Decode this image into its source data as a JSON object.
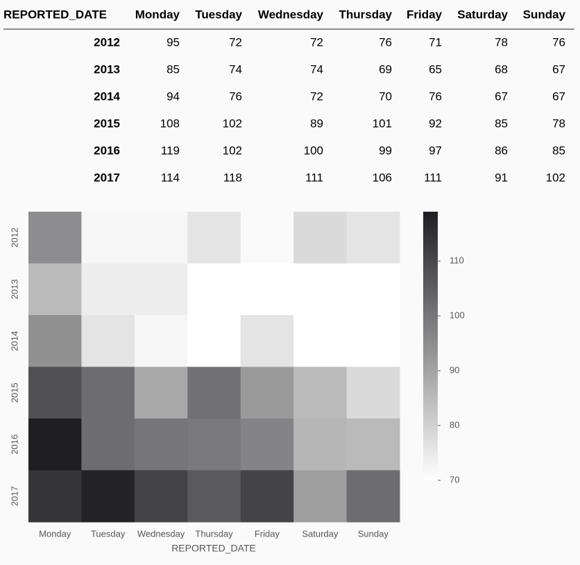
{
  "table": {
    "header": [
      "REPORTED_DATE",
      "Monday",
      "Tuesday",
      "Wednesday",
      "Thursday",
      "Friday",
      "Saturday",
      "Sunday"
    ],
    "rows": [
      [
        "2012",
        95,
        72,
        72,
        76,
        71,
        78,
        76
      ],
      [
        "2013",
        85,
        74,
        74,
        69,
        65,
        68,
        67
      ],
      [
        "2014",
        94,
        76,
        72,
        70,
        76,
        67,
        67
      ],
      [
        "2015",
        108,
        102,
        89,
        101,
        92,
        85,
        78
      ],
      [
        "2016",
        119,
        102,
        100,
        99,
        97,
        86,
        85
      ],
      [
        "2017",
        114,
        118,
        111,
        106,
        111,
        91,
        102
      ]
    ]
  },
  "chart_data": {
    "type": "heatmap",
    "x_label": "REPORTED_DATE",
    "x": [
      "Monday",
      "Tuesday",
      "Wednesday",
      "Thursday",
      "Friday",
      "Saturday",
      "Sunday"
    ],
    "y": [
      "2012",
      "2013",
      "2014",
      "2015",
      "2016",
      "2017"
    ],
    "values": [
      [
        95,
        72,
        72,
        76,
        71,
        78,
        76
      ],
      [
        85,
        74,
        74,
        69,
        65,
        68,
        67
      ],
      [
        94,
        76,
        72,
        70,
        76,
        67,
        67
      ],
      [
        108,
        102,
        89,
        101,
        92,
        85,
        78
      ],
      [
        119,
        102,
        100,
        99,
        97,
        86,
        85
      ],
      [
        114,
        118,
        111,
        106,
        111,
        91,
        102
      ]
    ],
    "colormap": "Greys",
    "clim": [
      70,
      119
    ],
    "cticks": [
      70,
      80,
      90,
      100,
      110
    ]
  }
}
